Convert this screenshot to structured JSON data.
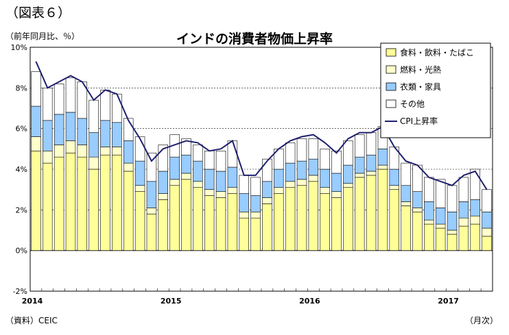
{
  "figure_label": "（図表６）",
  "unit_label": "（前年同月比、％）",
  "source_label": "（資料）CEIC",
  "x_unit_label": "（月次）",
  "colors": {
    "food": "#ffff99",
    "fuel": "#ffffcc",
    "clothing": "#99ccff",
    "other": "#ffffff",
    "cpi": "#1f1f6e",
    "border": "#000000",
    "grid": "#000000"
  },
  "chart_data": {
    "type": "bar",
    "title": "インドの消費者物価上昇率",
    "xlabel": "",
    "ylabel": "",
    "ylim": [
      -2,
      10
    ],
    "ytick_labels": [
      "10%",
      "8%",
      "6%",
      "4%",
      "2%",
      "0%",
      "-2%"
    ],
    "ytick_values": [
      10,
      8,
      6,
      4,
      2,
      0,
      -2
    ],
    "year_labels": [
      {
        "label": "2014",
        "index": 0
      },
      {
        "label": "2015",
        "index": 12
      },
      {
        "label": "2016",
        "index": 24
      },
      {
        "label": "2017",
        "index": 36
      }
    ],
    "months": [
      "2014-01",
      "2014-02",
      "2014-03",
      "2014-04",
      "2014-05",
      "2014-06",
      "2014-07",
      "2014-08",
      "2014-09",
      "2014-10",
      "2014-11",
      "2014-12",
      "2015-01",
      "2015-02",
      "2015-03",
      "2015-04",
      "2015-05",
      "2015-06",
      "2015-07",
      "2015-08",
      "2015-09",
      "2015-10",
      "2015-11",
      "2015-12",
      "2016-01",
      "2016-02",
      "2016-03",
      "2016-04",
      "2016-05",
      "2016-06",
      "2016-07",
      "2016-08",
      "2016-09",
      "2016-10",
      "2016-11",
      "2016-12",
      "2017-01",
      "2017-02",
      "2017-03",
      "2017-04"
    ],
    "stacked": true,
    "series": [
      {
        "name": "食料・飲料・たばこ",
        "key": "food",
        "values": [
          4.9,
          4.3,
          4.6,
          4.8,
          4.6,
          4.0,
          4.7,
          4.7,
          3.9,
          2.9,
          1.8,
          2.5,
          3.2,
          3.5,
          3.1,
          2.7,
          2.6,
          2.8,
          1.6,
          1.6,
          2.3,
          2.8,
          3.1,
          3.2,
          3.4,
          2.8,
          2.6,
          3.1,
          3.6,
          3.7,
          4.0,
          3.0,
          2.2,
          1.9,
          1.3,
          1.1,
          0.8,
          1.2,
          1.3,
          0.7
        ]
      },
      {
        "name": "燃料・光熱",
        "key": "fuel",
        "values": [
          0.7,
          0.6,
          0.6,
          0.6,
          0.6,
          0.6,
          0.4,
          0.4,
          0.4,
          0.3,
          0.3,
          0.3,
          0.3,
          0.3,
          0.3,
          0.3,
          0.3,
          0.3,
          0.3,
          0.3,
          0.3,
          0.3,
          0.3,
          0.3,
          0.3,
          0.3,
          0.3,
          0.2,
          0.2,
          0.2,
          0.2,
          0.2,
          0.2,
          0.2,
          0.2,
          0.2,
          0.2,
          0.4,
          0.4,
          0.4
        ]
      },
      {
        "name": "衣類・家具",
        "key": "clothing",
        "values": [
          1.5,
          1.5,
          1.5,
          1.4,
          1.3,
          1.2,
          1.3,
          1.2,
          1.1,
          1.2,
          1.3,
          1.1,
          1.1,
          0.9,
          1.0,
          1.0,
          1.0,
          1.0,
          0.9,
          0.8,
          0.8,
          0.9,
          0.9,
          0.9,
          0.8,
          0.9,
          0.9,
          0.9,
          0.8,
          0.8,
          0.8,
          0.8,
          0.8,
          0.8,
          0.9,
          0.8,
          0.9,
          0.8,
          0.8,
          0.8
        ]
      },
      {
        "name": "その他",
        "key": "other",
        "values": [
          1.7,
          1.6,
          1.5,
          1.7,
          1.8,
          1.6,
          1.5,
          1.4,
          1.1,
          1.2,
          1.4,
          1.3,
          1.1,
          0.8,
          0.8,
          0.9,
          1.0,
          1.3,
          0.9,
          0.9,
          1.1,
          1.0,
          1.0,
          1.1,
          1.0,
          1.0,
          1.1,
          1.2,
          1.1,
          1.1,
          1.1,
          1.1,
          1.1,
          1.3,
          1.2,
          1.4,
          1.3,
          1.2,
          1.5,
          1.1
        ]
      }
    ],
    "line": {
      "name": "CPI上昇率",
      "key": "cpi",
      "values": [
        9.3,
        8.0,
        8.3,
        8.6,
        8.3,
        7.4,
        7.9,
        7.7,
        6.4,
        5.5,
        4.4,
        5.0,
        5.2,
        5.4,
        5.3,
        4.9,
        5.0,
        5.4,
        3.7,
        3.7,
        4.4,
        5.0,
        5.4,
        5.6,
        5.7,
        5.3,
        4.8,
        5.5,
        5.8,
        5.8,
        6.1,
        5.1,
        4.4,
        4.2,
        3.6,
        3.4,
        3.2,
        3.7,
        3.9,
        3.0
      ]
    },
    "legend": {
      "placement": "top-right",
      "entries": [
        {
          "label": "食料・飲料・たばこ",
          "key": "food",
          "kind": "box"
        },
        {
          "label": "燃料・光熱",
          "key": "fuel",
          "kind": "box"
        },
        {
          "label": "衣類・家具",
          "key": "clothing",
          "kind": "box"
        },
        {
          "label": "その他",
          "key": "other",
          "kind": "box"
        },
        {
          "label": "CPI上昇率",
          "key": "cpi",
          "kind": "line"
        }
      ]
    }
  }
}
